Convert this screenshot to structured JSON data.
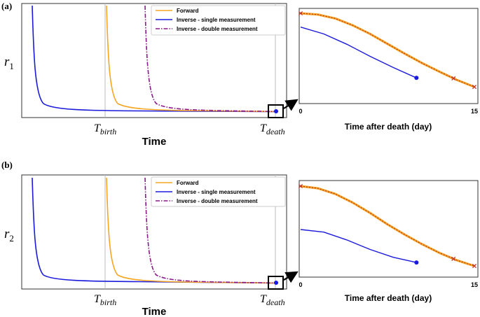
{
  "chart_data": [
    {
      "panel_label": "(a)",
      "type": "line",
      "ylabel_base": "r",
      "ylabel_sub": "1",
      "xlabel": "Time",
      "x_ticks": [
        {
          "base": "T",
          "sub": "birth"
        },
        {
          "base": "T",
          "sub": "death"
        }
      ],
      "legend": {
        "placement": "top-right",
        "entries": [
          "Forward",
          "Inverse - single measurement",
          "Inverse - double measurement"
        ]
      },
      "series_colors": {
        "forward": "#f5a623",
        "single": "#1a1adb",
        "double": "#8b1a8b"
      },
      "grid": "vertical lines at T_birth and T_death"
    },
    {
      "panel_label": "",
      "type": "line",
      "xlabel": "Time after death (day)",
      "x_ticks": [
        "0",
        "15"
      ],
      "xlim": [
        0,
        15
      ],
      "series": [
        {
          "name": "Forward",
          "color": "#f5a623",
          "x": [
            0,
            1.5,
            3,
            4.5,
            6,
            7.5,
            9,
            10.5,
            12,
            13.5,
            15
          ],
          "y": [
            1.0,
            0.985,
            0.94,
            0.86,
            0.76,
            0.645,
            0.53,
            0.42,
            0.32,
            0.225,
            0.145
          ]
        },
        {
          "name": "Inverse - single measurement",
          "color": "#1a1adb",
          "x": [
            0,
            2,
            4,
            6,
            8,
            10
          ],
          "y": [
            0.84,
            0.76,
            0.64,
            0.5,
            0.37,
            0.25
          ]
        },
        {
          "name": "Inverse - double measurement",
          "color": "#c0392b",
          "x": [
            0,
            1.5,
            3,
            4.5,
            6,
            7.5,
            9,
            10.5,
            12,
            13.5,
            15
          ],
          "y": [
            1.0,
            0.985,
            0.94,
            0.86,
            0.76,
            0.645,
            0.53,
            0.42,
            0.32,
            0.225,
            0.145
          ],
          "markers_x": [
            0,
            13.2,
            15
          ]
        }
      ]
    },
    {
      "panel_label": "(b)",
      "type": "line",
      "ylabel_base": "r",
      "ylabel_sub": "2",
      "xlabel": "Time",
      "x_ticks": [
        {
          "base": "T",
          "sub": "birth"
        },
        {
          "base": "T",
          "sub": "death"
        }
      ],
      "legend": {
        "placement": "top-right",
        "entries": [
          "Forward",
          "Inverse - single measurement",
          "Inverse - double measurement"
        ]
      },
      "series_colors": {
        "forward": "#f5a623",
        "single": "#1a1adb",
        "double": "#8b1a8b"
      },
      "grid": "vertical lines at T_birth and T_death"
    },
    {
      "panel_label": "",
      "type": "line",
      "xlabel": "Time after death (day)",
      "x_ticks": [
        "0",
        "15"
      ],
      "xlim": [
        0,
        15
      ],
      "series": [
        {
          "name": "Forward",
          "color": "#f5a623",
          "x": [
            0,
            1.5,
            3,
            4.5,
            6,
            7.5,
            9,
            10.5,
            12,
            13.5,
            15
          ],
          "y": [
            1.0,
            0.975,
            0.91,
            0.81,
            0.69,
            0.56,
            0.44,
            0.33,
            0.23,
            0.145,
            0.08
          ]
        },
        {
          "name": "Inverse - single measurement",
          "color": "#1a1adb",
          "x": [
            0,
            2,
            4,
            6,
            8,
            10
          ],
          "y": [
            0.5,
            0.47,
            0.38,
            0.27,
            0.18,
            0.12
          ]
        },
        {
          "name": "Inverse - double measurement",
          "color": "#c0392b",
          "x": [
            0,
            1.5,
            3,
            4.5,
            6,
            7.5,
            9,
            10.5,
            12,
            13.5,
            15
          ],
          "y": [
            1.0,
            0.975,
            0.91,
            0.81,
            0.69,
            0.56,
            0.44,
            0.33,
            0.23,
            0.145,
            0.08
          ],
          "markers_x": [
            0,
            13.2,
            15
          ]
        }
      ]
    }
  ]
}
